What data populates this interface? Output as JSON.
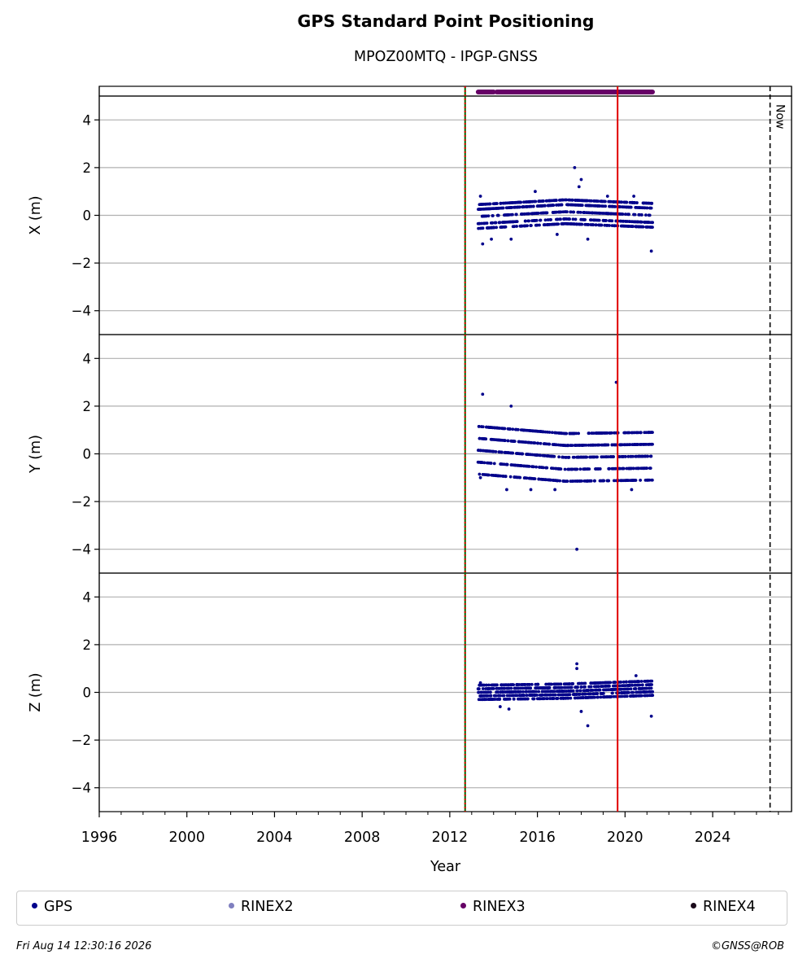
{
  "header": {
    "title": "GPS Standard Point Positioning",
    "subtitle": "MPOZ00MTQ - IPGP-GNSS"
  },
  "footer": {
    "timestamp": "Fri Aug 14 12:30:16 2026",
    "copyright": "©GNSS@ROB"
  },
  "chart_data": {
    "type": "scatter",
    "title": "GPS Standard Point Positioning",
    "subtitle": "MPOZ00MTQ - IPGP-GNSS",
    "xlabel": "Year",
    "xlim": [
      1996,
      2027.6
    ],
    "x_ticks": [
      1996,
      2000,
      2004,
      2008,
      2012,
      2016,
      2020,
      2024
    ],
    "x_tick_labels": [
      "1996",
      "2000",
      "2004",
      "2008",
      "2012",
      "2016",
      "2020",
      "2024"
    ],
    "grid": "horizontal",
    "now_label": "Now",
    "now_x": 2026.62,
    "vertical_markers": [
      {
        "x": 2012.7,
        "color": "#006400",
        "style": "solid"
      },
      {
        "x": 2012.7,
        "color": "#e00000",
        "style": "dashed"
      },
      {
        "x": 2019.66,
        "color": "#e00000",
        "style": "solid"
      }
    ],
    "data_availability": {
      "series": "RINEX3",
      "color": "#660066",
      "ranges": [
        [
          2013.3,
          2014.0
        ],
        [
          2014.15,
          2021.25
        ]
      ]
    },
    "panels": [
      {
        "ylabel": "X (m)",
        "ylim": [
          -5,
          5
        ],
        "y_ticks": [
          4,
          2,
          0,
          -2,
          -4
        ],
        "y_tick_labels": [
          "4",
          "2",
          "0",
          "−2",
          "−4"
        ],
        "band": {
          "x_range": [
            2013.3,
            2021.25
          ],
          "levels": [
            -0.5,
            -0.3,
            0.0,
            0.3,
            0.5
          ],
          "trend": [
            -0.1,
            0.3,
            0.0
          ]
        },
        "outliers": [
          {
            "x": 2013.4,
            "y": 0.8
          },
          {
            "x": 2013.5,
            "y": -1.2
          },
          {
            "x": 2013.9,
            "y": -1.0
          },
          {
            "x": 2014.8,
            "y": -1.0
          },
          {
            "x": 2015.9,
            "y": 1.0
          },
          {
            "x": 2016.9,
            "y": -0.8
          },
          {
            "x": 2017.7,
            "y": 2.0
          },
          {
            "x": 2017.9,
            "y": 1.2
          },
          {
            "x": 2018.0,
            "y": 1.5
          },
          {
            "x": 2018.3,
            "y": -1.0
          },
          {
            "x": 2019.2,
            "y": 0.8
          },
          {
            "x": 2020.4,
            "y": 0.8
          },
          {
            "x": 2021.2,
            "y": -1.5
          }
        ]
      },
      {
        "ylabel": "Y (m)",
        "ylim": [
          -5,
          5
        ],
        "y_ticks": [
          4,
          2,
          0,
          -2,
          -4
        ],
        "y_tick_labels": [
          "4",
          "2",
          "0",
          "−2",
          "−4"
        ],
        "band": {
          "x_range": [
            2013.3,
            2021.25
          ],
          "levels": [
            -1.0,
            -0.5,
            0.0,
            0.5,
            1.0
          ],
          "trend": [
            0.3,
            -0.3,
            -0.2
          ]
        },
        "outliers": [
          {
            "x": 2013.5,
            "y": 2.5
          },
          {
            "x": 2013.4,
            "y": -1.0
          },
          {
            "x": 2014.6,
            "y": -1.5
          },
          {
            "x": 2014.8,
            "y": 2.0
          },
          {
            "x": 2017.8,
            "y": -4.0
          },
          {
            "x": 2019.6,
            "y": 3.0
          },
          {
            "x": 2015.7,
            "y": -1.5
          },
          {
            "x": 2016.8,
            "y": -1.5
          },
          {
            "x": 2020.3,
            "y": -1.5
          }
        ]
      },
      {
        "ylabel": "Z (m)",
        "ylim": [
          -5,
          5
        ],
        "y_ticks": [
          4,
          2,
          0,
          -2,
          -4
        ],
        "y_tick_labels": [
          "4",
          "2",
          "0",
          "−2",
          "−4"
        ],
        "band": {
          "x_range": [
            2013.3,
            2021.25
          ],
          "levels": [
            -0.3,
            -0.15,
            0.0,
            0.15,
            0.3
          ],
          "trend": [
            0.0,
            0.1,
            0.35
          ]
        },
        "outliers": [
          {
            "x": 2013.4,
            "y": 0.4
          },
          {
            "x": 2014.3,
            "y": -0.6
          },
          {
            "x": 2014.7,
            "y": -0.7
          },
          {
            "x": 2017.8,
            "y": 1.2
          },
          {
            "x": 2017.8,
            "y": 1.0
          },
          {
            "x": 2018.0,
            "y": -0.8
          },
          {
            "x": 2018.3,
            "y": -1.4
          },
          {
            "x": 2021.2,
            "y": -1.0
          },
          {
            "x": 2020.5,
            "y": 0.7
          }
        ]
      }
    ],
    "legend": [
      {
        "label": "GPS",
        "color": "#00008b"
      },
      {
        "label": "RINEX2",
        "color": "#7f7fbf"
      },
      {
        "label": "RINEX3",
        "color": "#660066"
      },
      {
        "label": "RINEX4",
        "color": "#1a0a1a"
      }
    ]
  }
}
